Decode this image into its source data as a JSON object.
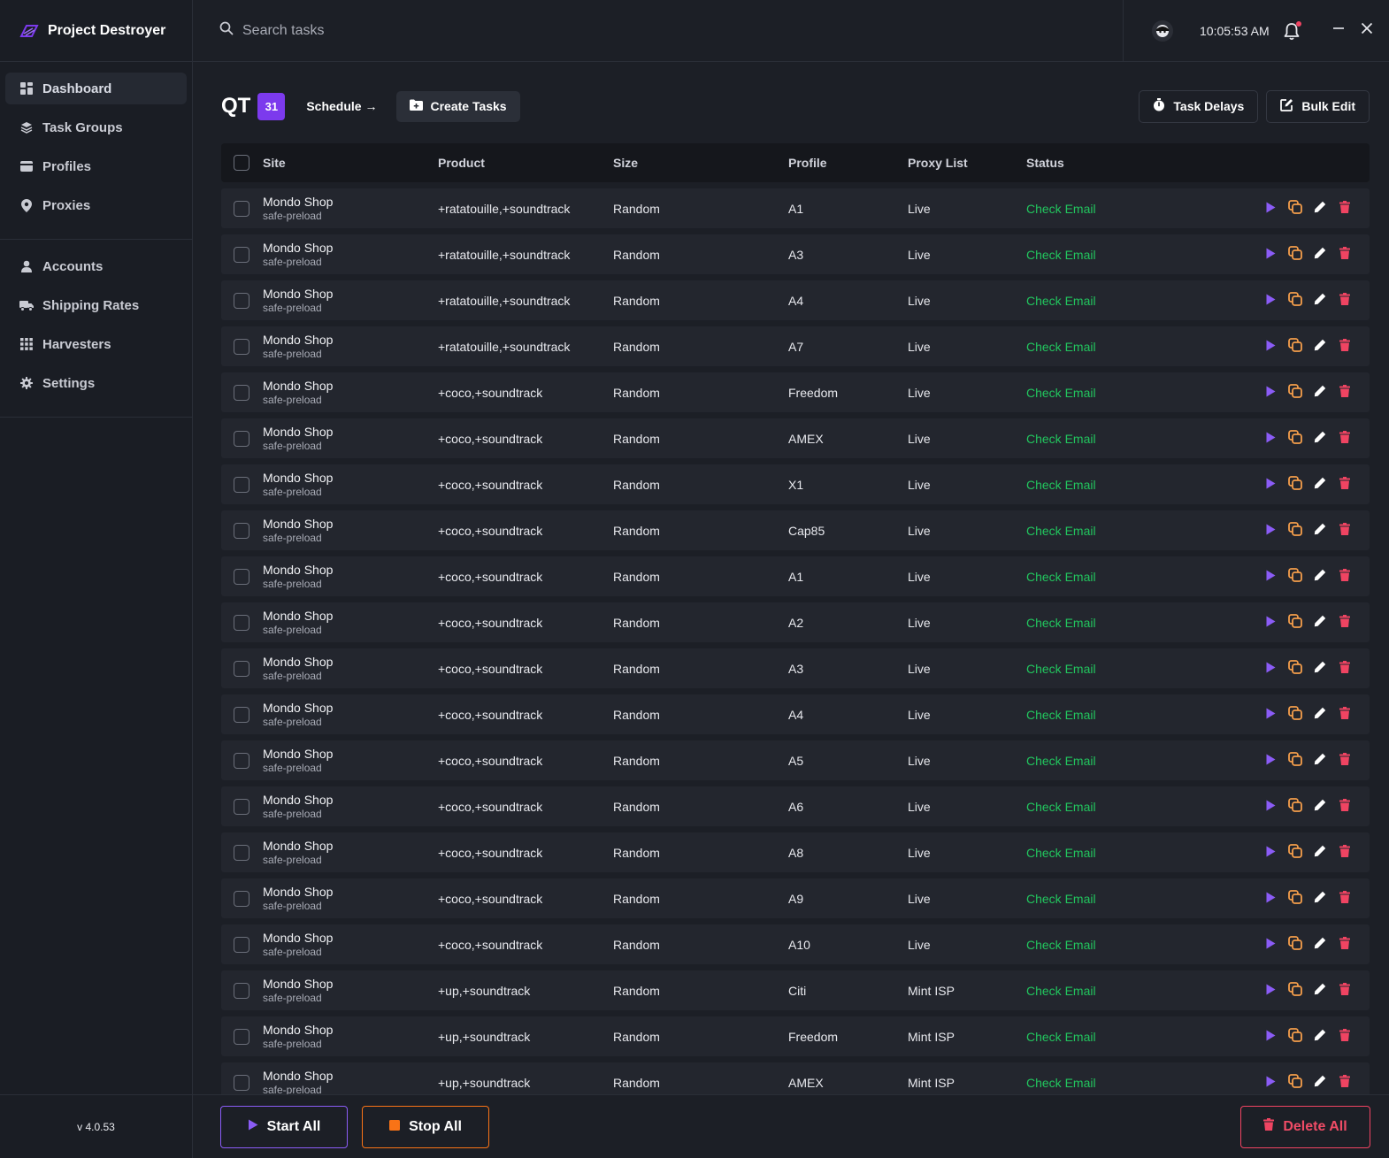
{
  "app": {
    "name": "Project Destroyer",
    "version": "v 4.0.53"
  },
  "sidebar": {
    "primary": [
      {
        "label": "Dashboard",
        "icon": "dashboard-icon",
        "active": true
      },
      {
        "label": "Task Groups",
        "icon": "layers-icon"
      },
      {
        "label": "Profiles",
        "icon": "card-icon"
      },
      {
        "label": "Proxies",
        "icon": "pin-icon"
      }
    ],
    "secondary": [
      {
        "label": "Accounts",
        "icon": "user-icon"
      },
      {
        "label": "Shipping Rates",
        "icon": "truck-icon"
      },
      {
        "label": "Harvesters",
        "icon": "grid-icon"
      },
      {
        "label": "Settings",
        "icon": "gear-icon"
      }
    ]
  },
  "topbar": {
    "search_placeholder": "Search tasks",
    "time": "10:05:53 AM"
  },
  "toolbar": {
    "title": "QT",
    "count": "31",
    "schedule_label": "Schedule →",
    "create_label": "Create Tasks",
    "delays_label": "Task Delays",
    "bulk_label": "Bulk Edit"
  },
  "table": {
    "headers": {
      "site": "Site",
      "product": "Product",
      "size": "Size",
      "profile": "Profile",
      "proxy": "Proxy List",
      "status": "Status"
    },
    "rows": [
      {
        "site": "Mondo Shop",
        "mode": "safe-preload",
        "product": "+ratatouille,+soundtrack",
        "size": "Random",
        "profile": "A1",
        "proxy": "Live",
        "status": "Check Email"
      },
      {
        "site": "Mondo Shop",
        "mode": "safe-preload",
        "product": "+ratatouille,+soundtrack",
        "size": "Random",
        "profile": "A3",
        "proxy": "Live",
        "status": "Check Email"
      },
      {
        "site": "Mondo Shop",
        "mode": "safe-preload",
        "product": "+ratatouille,+soundtrack",
        "size": "Random",
        "profile": "A4",
        "proxy": "Live",
        "status": "Check Email"
      },
      {
        "site": "Mondo Shop",
        "mode": "safe-preload",
        "product": "+ratatouille,+soundtrack",
        "size": "Random",
        "profile": "A7",
        "proxy": "Live",
        "status": "Check Email"
      },
      {
        "site": "Mondo Shop",
        "mode": "safe-preload",
        "product": "+coco,+soundtrack",
        "size": "Random",
        "profile": "Freedom",
        "proxy": "Live",
        "status": "Check Email"
      },
      {
        "site": "Mondo Shop",
        "mode": "safe-preload",
        "product": "+coco,+soundtrack",
        "size": "Random",
        "profile": "AMEX",
        "proxy": "Live",
        "status": "Check Email"
      },
      {
        "site": "Mondo Shop",
        "mode": "safe-preload",
        "product": "+coco,+soundtrack",
        "size": "Random",
        "profile": "X1",
        "proxy": "Live",
        "status": "Check Email"
      },
      {
        "site": "Mondo Shop",
        "mode": "safe-preload",
        "product": "+coco,+soundtrack",
        "size": "Random",
        "profile": "Cap85",
        "proxy": "Live",
        "status": "Check Email"
      },
      {
        "site": "Mondo Shop",
        "mode": "safe-preload",
        "product": "+coco,+soundtrack",
        "size": "Random",
        "profile": "A1",
        "proxy": "Live",
        "status": "Check Email"
      },
      {
        "site": "Mondo Shop",
        "mode": "safe-preload",
        "product": "+coco,+soundtrack",
        "size": "Random",
        "profile": "A2",
        "proxy": "Live",
        "status": "Check Email"
      },
      {
        "site": "Mondo Shop",
        "mode": "safe-preload",
        "product": "+coco,+soundtrack",
        "size": "Random",
        "profile": "A3",
        "proxy": "Live",
        "status": "Check Email"
      },
      {
        "site": "Mondo Shop",
        "mode": "safe-preload",
        "product": "+coco,+soundtrack",
        "size": "Random",
        "profile": "A4",
        "proxy": "Live",
        "status": "Check Email"
      },
      {
        "site": "Mondo Shop",
        "mode": "safe-preload",
        "product": "+coco,+soundtrack",
        "size": "Random",
        "profile": "A5",
        "proxy": "Live",
        "status": "Check Email"
      },
      {
        "site": "Mondo Shop",
        "mode": "safe-preload",
        "product": "+coco,+soundtrack",
        "size": "Random",
        "profile": "A6",
        "proxy": "Live",
        "status": "Check Email"
      },
      {
        "site": "Mondo Shop",
        "mode": "safe-preload",
        "product": "+coco,+soundtrack",
        "size": "Random",
        "profile": "A8",
        "proxy": "Live",
        "status": "Check Email"
      },
      {
        "site": "Mondo Shop",
        "mode": "safe-preload",
        "product": "+coco,+soundtrack",
        "size": "Random",
        "profile": "A9",
        "proxy": "Live",
        "status": "Check Email"
      },
      {
        "site": "Mondo Shop",
        "mode": "safe-preload",
        "product": "+coco,+soundtrack",
        "size": "Random",
        "profile": "A10",
        "proxy": "Live",
        "status": "Check Email"
      },
      {
        "site": "Mondo Shop",
        "mode": "safe-preload",
        "product": "+up,+soundtrack",
        "size": "Random",
        "profile": "Citi",
        "proxy": "Mint ISP",
        "status": "Check Email"
      },
      {
        "site": "Mondo Shop",
        "mode": "safe-preload",
        "product": "+up,+soundtrack",
        "size": "Random",
        "profile": "Freedom",
        "proxy": "Mint ISP",
        "status": "Check Email"
      },
      {
        "site": "Mondo Shop",
        "mode": "safe-preload",
        "product": "+up,+soundtrack",
        "size": "Random",
        "profile": "AMEX",
        "proxy": "Mint ISP",
        "status": "Check Email"
      }
    ]
  },
  "footer": {
    "start_label": "Start All",
    "stop_label": "Stop All",
    "delete_label": "Delete All"
  },
  "colors": {
    "accent": "#7c3aed",
    "play": "#8b5cf6",
    "copy": "#f59e4b",
    "delete": "#ef4462",
    "status_ok": "#22c55e"
  }
}
